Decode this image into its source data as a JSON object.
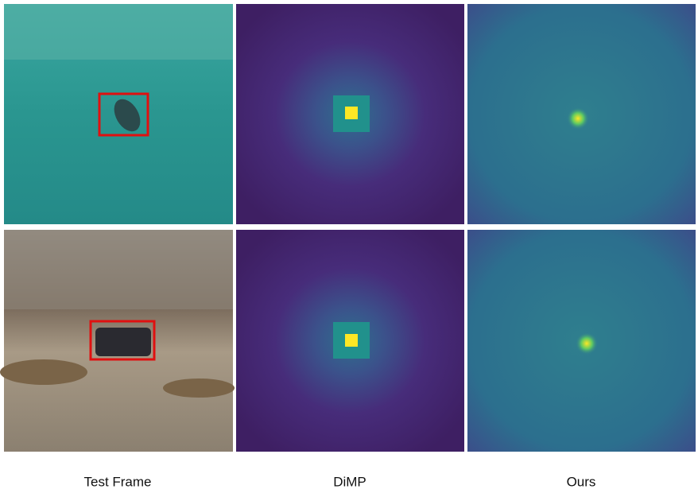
{
  "captions": [
    "Test Frame",
    "DiMP",
    "Ours"
  ]
}
